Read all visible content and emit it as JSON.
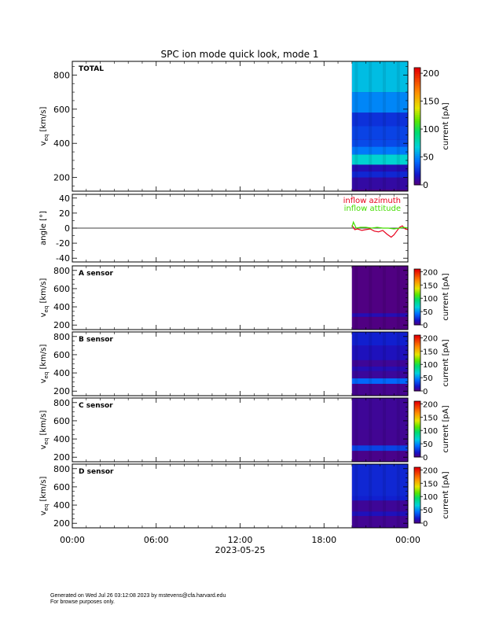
{
  "title": "SPC ion mode quick look, mode 1",
  "footer": {
    "line1": "Generated on Wed Jul 26 03:12:08 2023 by mstevens@cfa.harvard.edu",
    "line2": "For browse purposes only."
  },
  "colors": {
    "frame": "#000000",
    "inflow_azimuth": "#e8001c",
    "inflow_attitude": "#44dd00"
  },
  "chart_data": [
    {
      "type": "heatmap",
      "panel_label": "TOTAL",
      "ylabel_main": "v",
      "ylabel_sub": "eq",
      "ylabel_unit": "[km/s]",
      "ylim": [
        120,
        880
      ],
      "yticks": [
        200,
        400,
        600,
        800
      ],
      "data_x_range": [
        "20:00",
        "24:00"
      ],
      "colorbar": {
        "label": "current [pA]",
        "ticks": [
          0,
          50,
          100,
          150,
          200
        ],
        "range": [
          0,
          210
        ]
      },
      "rows": [
        {
          "v_range": [
            130,
            200
          ],
          "current_pA": 8
        },
        {
          "v_range": [
            200,
            235
          ],
          "current_pA": 22
        },
        {
          "v_range": [
            235,
            275
          ],
          "current_pA": 12
        },
        {
          "v_range": [
            275,
            335
          ],
          "current_pA": 70
        },
        {
          "v_range": [
            335,
            380
          ],
          "current_pA": 45
        },
        {
          "v_range": [
            380,
            420
          ],
          "current_pA": 32
        },
        {
          "v_range": [
            420,
            500
          ],
          "current_pA": 30
        },
        {
          "v_range": [
            500,
            580
          ],
          "current_pA": 25
        },
        {
          "v_range": [
            580,
            700
          ],
          "current_pA": 48
        },
        {
          "v_range": [
            700,
            880
          ],
          "current_pA": 62
        }
      ]
    },
    {
      "type": "line",
      "ylabel": "angle [°]",
      "ylim": [
        -45,
        45
      ],
      "yticks": [
        -40,
        -20,
        0,
        20,
        40
      ],
      "series": [
        {
          "name": "inflow azimuth",
          "x_hours": [
            20.0,
            20.2,
            20.4,
            20.7,
            21.0,
            21.3,
            21.6,
            21.9,
            22.2,
            22.5,
            22.8,
            23.0,
            23.2,
            23.4,
            23.6,
            23.8,
            24.0
          ],
          "values": [
            4,
            -2,
            -1,
            -3,
            -2,
            -1,
            -4,
            -5,
            -3,
            -8,
            -12,
            -9,
            -4,
            1,
            3,
            -1,
            -2
          ]
        },
        {
          "name": "inflow attitude",
          "x_hours": [
            20.0,
            20.1,
            20.3,
            20.6,
            21.0,
            21.4,
            21.8,
            22.2,
            22.6,
            23.0,
            23.4,
            23.7,
            24.0
          ],
          "values": [
            1,
            8,
            0,
            1,
            1,
            0,
            1,
            0,
            0,
            -1,
            0,
            1,
            0
          ]
        }
      ]
    },
    {
      "type": "heatmap",
      "panel_label": "A sensor",
      "ylabel_main": "v",
      "ylabel_sub": "eq",
      "ylabel_unit": "[km/s]",
      "ylim": [
        150,
        850
      ],
      "yticks": [
        200,
        400,
        600,
        800
      ],
      "data_x_range": [
        "20:00",
        "24:00"
      ],
      "colorbar": {
        "label": "current [pA]",
        "ticks": [
          0,
          50,
          100,
          150,
          200
        ],
        "range": [
          0,
          210
        ]
      },
      "rows": [
        {
          "v_range": [
            150,
            290
          ],
          "current_pA": 0
        },
        {
          "v_range": [
            290,
            330
          ],
          "current_pA": 12
        },
        {
          "v_range": [
            330,
            850
          ],
          "current_pA": 0
        }
      ]
    },
    {
      "type": "heatmap",
      "panel_label": "B sensor",
      "ylabel_main": "v",
      "ylabel_sub": "eq",
      "ylabel_unit": "[km/s]",
      "ylim": [
        150,
        850
      ],
      "yticks": [
        200,
        400,
        600,
        800
      ],
      "data_x_range": [
        "20:00",
        "24:00"
      ],
      "colorbar": {
        "label": "current [pA]",
        "ticks": [
          0,
          50,
          100,
          150,
          200
        ],
        "range": [
          0,
          210
        ]
      },
      "rows": [
        {
          "v_range": [
            150,
            280
          ],
          "current_pA": 3
        },
        {
          "v_range": [
            280,
            340
          ],
          "current_pA": 40
        },
        {
          "v_range": [
            340,
            420
          ],
          "current_pA": 6
        },
        {
          "v_range": [
            420,
            470
          ],
          "current_pA": 12
        },
        {
          "v_range": [
            470,
            540
          ],
          "current_pA": 5
        },
        {
          "v_range": [
            540,
            700
          ],
          "current_pA": 14
        },
        {
          "v_range": [
            700,
            850
          ],
          "current_pA": 20
        }
      ]
    },
    {
      "type": "heatmap",
      "panel_label": "C sensor",
      "ylabel_main": "v",
      "ylabel_sub": "eq",
      "ylabel_unit": "[km/s]",
      "ylim": [
        150,
        850
      ],
      "yticks": [
        200,
        400,
        600,
        800
      ],
      "data_x_range": [
        "20:00",
        "24:00"
      ],
      "colorbar": {
        "label": "current [pA]",
        "ticks": [
          0,
          50,
          100,
          150,
          200
        ],
        "range": [
          0,
          210
        ]
      },
      "rows": [
        {
          "v_range": [
            150,
            270
          ],
          "current_pA": 2
        },
        {
          "v_range": [
            270,
            330
          ],
          "current_pA": 30
        },
        {
          "v_range": [
            330,
            500
          ],
          "current_pA": 4
        },
        {
          "v_range": [
            500,
            850
          ],
          "current_pA": 5
        }
      ]
    },
    {
      "type": "heatmap",
      "panel_label": "D sensor",
      "ylabel_main": "v",
      "ylabel_sub": "eq",
      "ylabel_unit": "[km/s]",
      "ylim": [
        150,
        850
      ],
      "yticks": [
        200,
        400,
        600,
        800
      ],
      "data_x_range": [
        "20:00",
        "24:00"
      ],
      "colorbar": {
        "label": "current [pA]",
        "ticks": [
          0,
          50,
          100,
          150,
          200
        ],
        "range": [
          0,
          210
        ]
      },
      "rows": [
        {
          "v_range": [
            150,
            280
          ],
          "current_pA": 4
        },
        {
          "v_range": [
            280,
            330
          ],
          "current_pA": 14
        },
        {
          "v_range": [
            330,
            450
          ],
          "current_pA": 5
        },
        {
          "v_range": [
            450,
            500
          ],
          "current_pA": 20
        },
        {
          "v_range": [
            500,
            850
          ],
          "current_pA": 22
        }
      ]
    }
  ],
  "xaxis": {
    "ticks": [
      "00:00",
      "06:00",
      "12:00",
      "18:00",
      "00:00"
    ],
    "tick_hours": [
      0,
      6,
      12,
      18,
      24
    ],
    "date_label": "2023-05-25"
  }
}
